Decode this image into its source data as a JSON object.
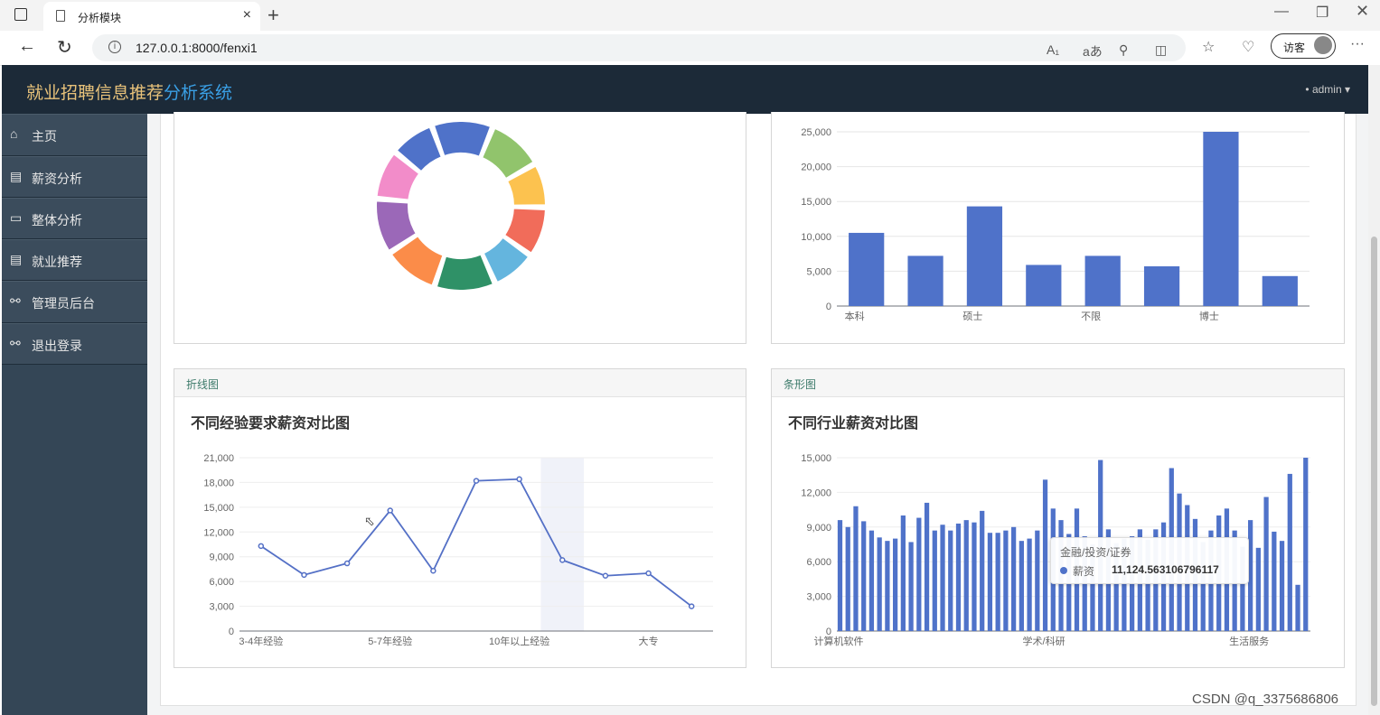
{
  "browser": {
    "tab_title": "分析模块",
    "tab_close": "×",
    "new_tab": "+",
    "url": "127.0.0.1:8000/fenxi1",
    "guest_label": "访客",
    "more": "···"
  },
  "app": {
    "brand_main": "就业招聘信息推荐",
    "brand_accent": "分析系统",
    "user": "admin"
  },
  "sidebar": {
    "items": [
      {
        "label": "主页",
        "icon": "home-icon"
      },
      {
        "label": "薪资分析",
        "icon": "document-icon"
      },
      {
        "label": "整体分析",
        "icon": "monitor-icon"
      },
      {
        "label": "就业推荐",
        "icon": "document-icon"
      },
      {
        "label": "管理员后台",
        "icon": "key-icon"
      },
      {
        "label": "退出登录",
        "icon": "key-icon"
      }
    ]
  },
  "panels": {
    "line": {
      "head": "折线图",
      "title": "不同经验要求薪资对比图"
    },
    "barh": {
      "head": "条形图",
      "title": "不同行业薪资对比图"
    }
  },
  "tooltip": {
    "title": "金融/投资/证券",
    "series": "薪资",
    "value": "11,124.563106796117"
  },
  "watermark": "CSDN @q_3375686806",
  "colors": {
    "header": "#1c2a38",
    "sidebar": "#344656",
    "accent": "#3aa0e6",
    "brand": "#e8c27a",
    "bar": "#4f72c9"
  },
  "chart_data": [
    {
      "type": "pie",
      "variant": "donut",
      "values": [
        11,
        10,
        8,
        9,
        8,
        11,
        10,
        10,
        9,
        8
      ],
      "colors": [
        "#4f72c9",
        "#91c46c",
        "#fcc24f",
        "#f16c5a",
        "#64b5de",
        "#2f9167",
        "#fb8c49",
        "#9b68b8",
        "#f28cc9",
        "#4f72c9"
      ]
    },
    {
      "type": "bar",
      "categories": [
        "本科",
        "",
        "硕士",
        "",
        "不限",
        "",
        "博士",
        ""
      ],
      "values": [
        10500,
        7200,
        14300,
        5900,
        7200,
        5700,
        25000,
        4300
      ],
      "yticks": [
        "0",
        "5,000",
        "10,000",
        "15,000",
        "20,000",
        "25,000"
      ],
      "ylim": [
        0,
        25000
      ]
    },
    {
      "type": "line",
      "title": "不同经验要求薪资对比图",
      "categories": [
        "3-4年经验",
        "",
        "",
        "5-7年经验",
        "",
        "",
        "10年以上经验",
        "",
        "",
        "大专",
        ""
      ],
      "values": [
        10300,
        6800,
        8200,
        14600,
        7300,
        18200,
        18400,
        8600,
        6700,
        7000,
        3000
      ],
      "yticks": [
        "0",
        "3,000",
        "6,000",
        "9,000",
        "12,000",
        "15,000",
        "18,000",
        "21,000"
      ],
      "ylim": [
        0,
        21000
      ],
      "highlight_index": 7
    },
    {
      "type": "bar",
      "title": "不同行业薪资对比图",
      "xlabels": [
        "计算机软件",
        "学术/科研",
        "生活服务"
      ],
      "values": [
        9600,
        9000,
        10800,
        9500,
        8700,
        8100,
        7800,
        8000,
        10000,
        7700,
        9800,
        11100,
        8700,
        9200,
        8700,
        9300,
        9600,
        9400,
        10400,
        8500,
        8500,
        8700,
        9000,
        7800,
        8000,
        8700,
        13100,
        10600,
        9600,
        8400,
        10600,
        8200,
        7500,
        14800,
        8800,
        7600,
        8000,
        8200,
        8800,
        7900,
        8800,
        9400,
        14100,
        11900,
        10900,
        9700,
        7700,
        8700,
        10000,
        10600,
        8700,
        7300,
        9600,
        7200,
        11600,
        8600,
        7800,
        13600,
        4000,
        15000
      ],
      "yticks": [
        "0",
        "3,000",
        "6,000",
        "9,000",
        "12,000",
        "15,000"
      ],
      "ylim": [
        0,
        15000
      ]
    }
  ]
}
